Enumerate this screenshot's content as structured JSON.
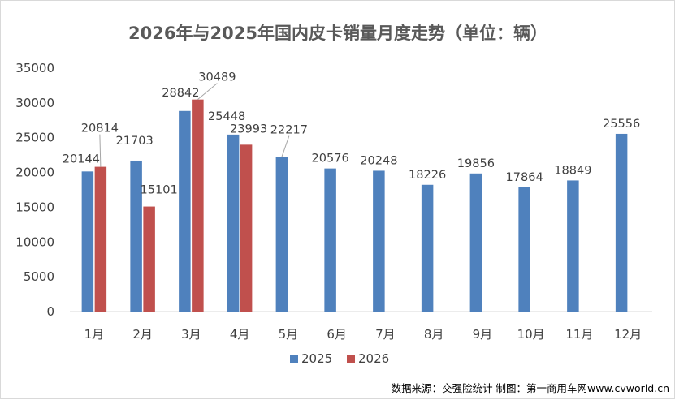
{
  "chart_data": {
    "type": "bar",
    "title": "2026年与2025年国内皮卡销量月度走势（单位：辆）",
    "categories": [
      "1月",
      "2月",
      "3月",
      "4月",
      "5月",
      "6月",
      "7月",
      "8月",
      "9月",
      "10月",
      "11月",
      "12月"
    ],
    "series": [
      {
        "name": "2025",
        "color": "#4f81bd",
        "values": [
          20144,
          21703,
          28842,
          25448,
          22217,
          20576,
          20248,
          18226,
          19856,
          17864,
          18849,
          25556
        ]
      },
      {
        "name": "2026",
        "color": "#c0504d",
        "values": [
          20814,
          15101,
          30489,
          23993,
          null,
          null,
          null,
          null,
          null,
          null,
          null,
          null
        ]
      }
    ],
    "ylim": [
      0,
      35000
    ],
    "yticks": [
      0,
      5000,
      10000,
      15000,
      20000,
      25000,
      30000,
      35000
    ],
    "grid": false,
    "legend_position": "bottom",
    "source": "数据来源：交强险统计 制图：第一商用车网www.cvworld.cn"
  }
}
